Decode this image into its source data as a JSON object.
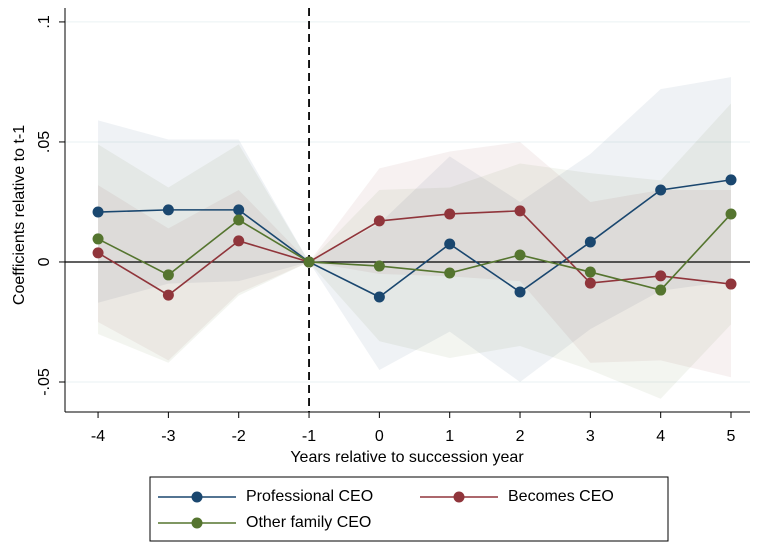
{
  "chart_data": {
    "type": "line",
    "x_label": "Years relative to succession year",
    "y_label": "Coefficients relative to t-1",
    "x": [
      -4,
      -3,
      -2,
      -1,
      0,
      1,
      2,
      3,
      4,
      5
    ],
    "xlim": [
      -4.47,
      5.27
    ],
    "xticks": [
      -4,
      -3,
      -2,
      -1,
      0,
      1,
      2,
      3,
      4,
      5
    ],
    "ylim": [
      -0.0625,
      0.1058
    ],
    "yticks": [
      {
        "value": -0.05,
        "label": "-.05"
      },
      0,
      {
        "value": 0.05,
        "label": ".05"
      },
      {
        "value": 0.1,
        "label": ".1"
      }
    ],
    "grid": true,
    "reference_x": -1,
    "reference_y": 0,
    "series": [
      {
        "name": "Professional CEO",
        "color": "#1a476f",
        "values": [
          0.0208,
          0.0217,
          0.0217,
          0,
          -0.0146,
          0.0075,
          -0.0125,
          0.0083,
          0.03,
          0.0342
        ],
        "upper": [
          0.059,
          0.051,
          0.051,
          0,
          0.016,
          0.044,
          0.025,
          0.045,
          0.072,
          0.077
        ],
        "lower": [
          -0.017,
          -0.009,
          -0.008,
          0,
          -0.045,
          -0.029,
          -0.05,
          -0.028,
          -0.012,
          -0.008
        ]
      },
      {
        "name": "Becomes CEO",
        "color": "#90353b",
        "values": [
          0.0038,
          -0.0138,
          0.0088,
          0,
          0.0171,
          0.02,
          0.0213,
          -0.0088,
          -0.0058,
          -0.0092
        ],
        "upper": [
          0.032,
          0.014,
          0.03,
          0,
          0.039,
          0.046,
          0.05,
          0.025,
          0.03,
          0.03
        ],
        "lower": [
          -0.025,
          -0.041,
          -0.013,
          0,
          -0.005,
          -0.006,
          -0.008,
          -0.042,
          -0.041,
          -0.048
        ]
      },
      {
        "name": "Other family CEO",
        "color": "#55752f",
        "values": [
          0.0096,
          -0.0054,
          0.0175,
          0,
          -0.0017,
          -0.0046,
          0.0029,
          -0.0042,
          -0.0117,
          0.02
        ],
        "upper": [
          0.049,
          0.031,
          0.049,
          0,
          0.03,
          0.031,
          0.041,
          0.037,
          0.034,
          0.066
        ],
        "lower": [
          -0.03,
          -0.042,
          -0.014,
          0,
          -0.033,
          -0.04,
          -0.035,
          -0.045,
          -0.057,
          -0.026
        ]
      }
    ]
  }
}
